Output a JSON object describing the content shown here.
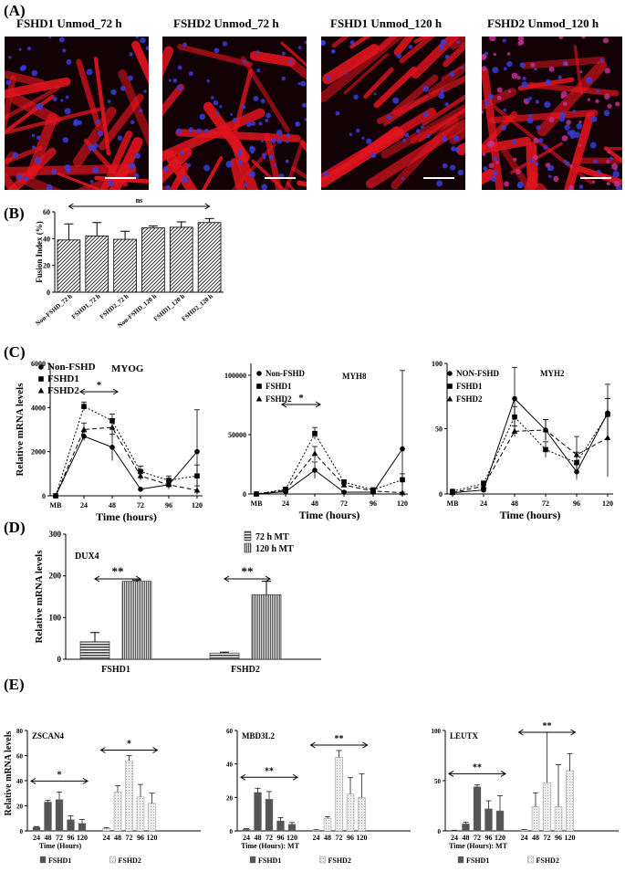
{
  "panels": {
    "A": "(A)",
    "B": "(B)",
    "C": "(C)",
    "D": "(D)",
    "E": "(E)"
  },
  "panel_a": {
    "images": [
      {
        "title": "FSHD1 Unmod_72 h"
      },
      {
        "title": "FSHD2 Unmod_72 h"
      },
      {
        "title": "FSHD1 Unmod_120 h"
      },
      {
        "title": "FSHD2 Unmod_120 h"
      }
    ],
    "colors": {
      "stain": "#e0141e",
      "nuclei": "#3a3cd8",
      "background": "#120206"
    }
  },
  "chart_data": [
    {
      "panel": "B",
      "type": "bar",
      "ylabel": "Fusion Index (%)",
      "ylim": [
        0,
        60
      ],
      "yticks": [
        0,
        20,
        40,
        60
      ],
      "categories": [
        "Non-FSHD_72 h",
        "FSHD1_72 h",
        "FSHD2_72 h",
        "Non-FSHD_120 h",
        "FSHD1_120 h",
        "FSHD2_120 h"
      ],
      "values": [
        39,
        42,
        39.5,
        48,
        48.5,
        52
      ],
      "errors": [
        12,
        10,
        6,
        1.5,
        4,
        3
      ],
      "significance": "ns"
    },
    {
      "panel": "C1",
      "type": "line",
      "gene": "MYOG",
      "ylabel": "Relative  mRNA levels",
      "xlabel": "Time (hours)",
      "x": [
        "MB",
        "24",
        "48",
        "72",
        "96",
        "120"
      ],
      "ylim": [
        0,
        6000
      ],
      "yticks": [
        0,
        2000,
        4000,
        6000
      ],
      "series": [
        {
          "name": "Non-FSHD",
          "marker": "circle",
          "values": [
            0,
            2700,
            2200,
            300,
            500,
            2000
          ],
          "errors": [
            0,
            200,
            600,
            0,
            0,
            1900
          ]
        },
        {
          "name": "FSHD1",
          "marker": "square",
          "values": [
            0,
            4050,
            3400,
            1100,
            700,
            900
          ],
          "errors": [
            0,
            200,
            300,
            250,
            200,
            500
          ]
        },
        {
          "name": "FSHD2",
          "marker": "triangle",
          "values": [
            0,
            3000,
            3100,
            900,
            500,
            250
          ],
          "errors": [
            0,
            300,
            400,
            200,
            200,
            200
          ]
        }
      ],
      "significance": "*"
    },
    {
      "panel": "C2",
      "type": "line",
      "gene": "MYH8",
      "xlabel": "Time (hours)",
      "x": [
        "MB",
        "24",
        "48",
        "72",
        "96",
        "120"
      ],
      "ylim": [
        0,
        110000
      ],
      "yticks": [
        0,
        50000,
        100000
      ],
      "series": [
        {
          "name": "Non-FSHD",
          "marker": "circle",
          "values": [
            0,
            2000,
            20000,
            1500,
            1500,
            38000
          ],
          "errors": [
            0,
            1000,
            7000,
            800,
            800,
            66000
          ]
        },
        {
          "name": "FSHD1",
          "marker": "square",
          "values": [
            0,
            4000,
            51000,
            10000,
            3500,
            12000
          ],
          "errors": [
            0,
            1500,
            5000,
            2000,
            800,
            5000
          ]
        },
        {
          "name": "FSHD2",
          "marker": "triangle",
          "values": [
            0,
            3000,
            34000,
            7500,
            2500,
            1000
          ],
          "errors": [
            0,
            1200,
            6000,
            1500,
            800,
            500
          ]
        }
      ],
      "significance": "*"
    },
    {
      "panel": "C3",
      "type": "line",
      "gene": "MYH2",
      "xlabel": "Time (hours)",
      "x": [
        "MB",
        "24",
        "48",
        "72",
        "96",
        "120"
      ],
      "ylim": [
        0,
        100
      ],
      "yticks": [
        0,
        50,
        100
      ],
      "series": [
        {
          "name": "NON-FSHD",
          "marker": "circle",
          "values": [
            1,
            3,
            73,
            49,
            17,
            62
          ],
          "errors": [
            1,
            1,
            24,
            8,
            6,
            22
          ]
        },
        {
          "name": "FSHD1",
          "marker": "square",
          "values": [
            2,
            8,
            59,
            34,
            24,
            61
          ],
          "errors": [
            1,
            2,
            8,
            6,
            8,
            12
          ]
        },
        {
          "name": "FSHD2",
          "marker": "triangle",
          "values": [
            1,
            6,
            48,
            49,
            30,
            43
          ],
          "errors": [
            1,
            2,
            4,
            8,
            14,
            30
          ]
        }
      ]
    },
    {
      "panel": "D",
      "type": "bar",
      "gene": "DUX4",
      "ylabel": "Relative mRNA levels",
      "categories": [
        "FSHD1",
        "FSHD2"
      ],
      "ylim": [
        0,
        300
      ],
      "yticks": [
        0,
        100,
        200,
        300
      ],
      "series": [
        {
          "name": "72 h MT",
          "values": [
            42,
            15
          ],
          "errors": [
            22,
            2
          ]
        },
        {
          "name": "120 h MT",
          "values": [
            187,
            155
          ],
          "errors": [
            3,
            32
          ]
        }
      ],
      "significance": "**"
    },
    {
      "panel": "E1",
      "type": "bar",
      "gene": "ZSCAN4",
      "ylabel": "Relative mRNA levels",
      "xlabel": "Time (Hours)",
      "x": [
        "24",
        "48",
        "72",
        "96",
        "120"
      ],
      "ylim": [
        0,
        80
      ],
      "yticks": [
        0,
        20,
        40,
        60,
        80
      ],
      "groups": [
        {
          "name": "FSHD1",
          "values": [
            3,
            23,
            25,
            9,
            6
          ],
          "errors": [
            0.5,
            1.5,
            6,
            3,
            3
          ]
        },
        {
          "name": "FSHD2",
          "values": [
            2,
            31,
            56,
            27,
            22
          ],
          "errors": [
            0.5,
            5,
            4,
            10,
            8
          ]
        }
      ],
      "significance": "*"
    },
    {
      "panel": "E2",
      "type": "bar",
      "gene": "MBD3L2",
      "xlabel": "Time (Hours): MT",
      "x": [
        "24",
        "48",
        "72",
        "96",
        "120"
      ],
      "ylim": [
        0,
        60
      ],
      "yticks": [
        0,
        20,
        40,
        60
      ],
      "groups": [
        {
          "name": "FSHD1",
          "values": [
            1,
            23,
            19,
            6,
            4
          ],
          "errors": [
            0.3,
            2.5,
            4.5,
            2,
            1
          ]
        },
        {
          "name": "FSHD2",
          "values": [
            0.5,
            7.5,
            44,
            22,
            20
          ],
          "errors": [
            0.2,
            1,
            4,
            10,
            14
          ]
        }
      ],
      "significance": "**"
    },
    {
      "panel": "E3",
      "type": "bar",
      "gene": "LEUTX",
      "xlabel": "Time (Hours): MT",
      "x": [
        "24",
        "48",
        "72",
        "96",
        "120"
      ],
      "ylim": [
        0,
        100
      ],
      "yticks": [
        0,
        50,
        100
      ],
      "groups": [
        {
          "name": "FSHD1",
          "values": [
            0.5,
            7,
            44,
            22,
            20
          ],
          "errors": [
            0.2,
            1.5,
            2,
            8,
            15
          ]
        },
        {
          "name": "FSHD2",
          "values": [
            1,
            24,
            48,
            24,
            60
          ],
          "errors": [
            0.3,
            14,
            50,
            42,
            17
          ]
        }
      ],
      "significance": "**"
    }
  ]
}
